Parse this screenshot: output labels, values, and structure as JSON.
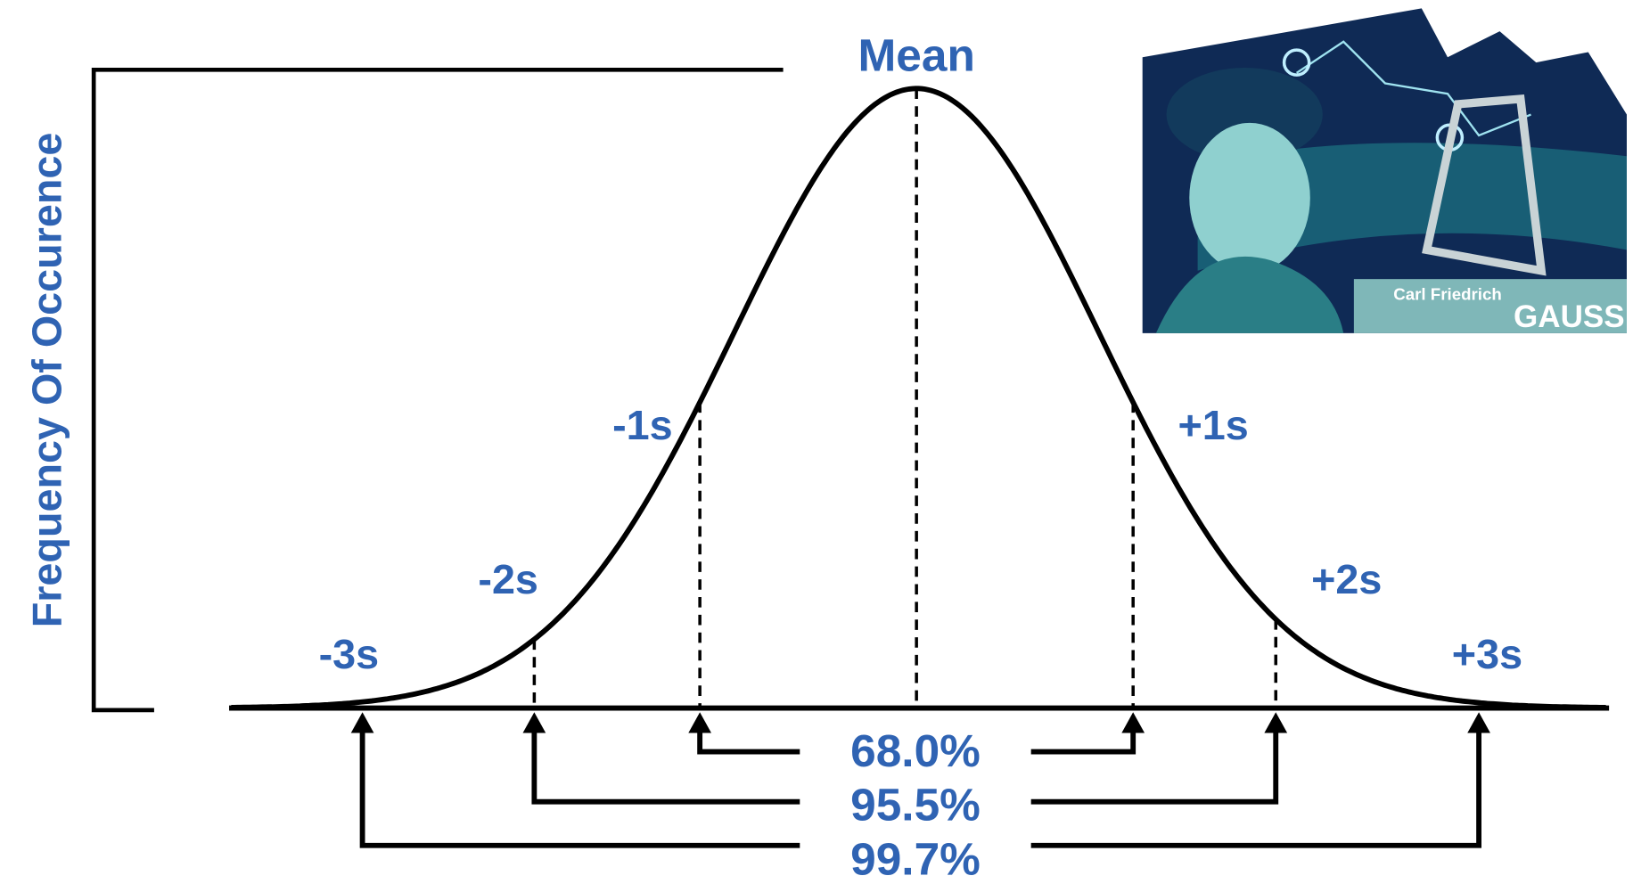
{
  "axis_label": "Frequency Of Occurence",
  "mean_label": "Mean",
  "sigma_labels": {
    "minus_1": "-1s",
    "plus_1": "+1s",
    "minus_2": "-2s",
    "plus_2": "+2s",
    "minus_3": "-3s",
    "plus_3": "+3s"
  },
  "ranges": {
    "one_sigma": "68.0%",
    "two_sigma": "95.5%",
    "three_sigma": "99.7%"
  },
  "portrait": {
    "first_names": "Carl Friedrich",
    "surname": "GAUSS"
  }
}
